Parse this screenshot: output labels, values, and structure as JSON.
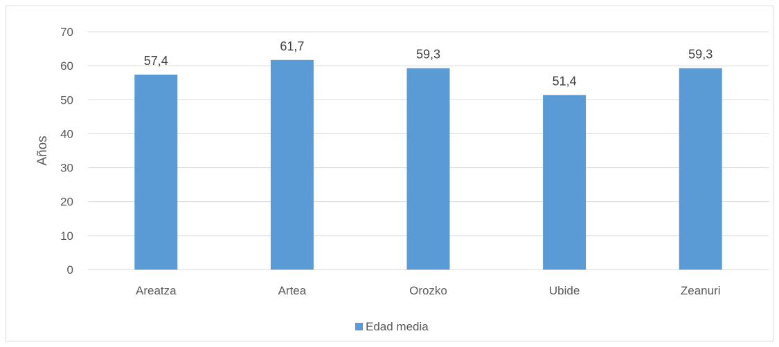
{
  "chart_data": {
    "type": "bar",
    "categories": [
      "Areatza",
      "Artea",
      "Orozko",
      "Ubide",
      "Zeanuri"
    ],
    "series": [
      {
        "name": "Edad media",
        "values": [
          57.4,
          61.7,
          59.3,
          51.4,
          59.3
        ]
      }
    ],
    "data_labels": [
      "57,4",
      "61,7",
      "59,3",
      "51,4",
      "59,3"
    ],
    "title": "",
    "xlabel": "",
    "ylabel": "Años",
    "ylim": [
      0,
      70
    ],
    "yticks": [
      0,
      10,
      20,
      30,
      40,
      50,
      60,
      70
    ],
    "grid": true,
    "legend": "bottom",
    "colors": {
      "bar": "#5b9bd5",
      "grid": "#d9d9d9",
      "text": "#595959"
    }
  }
}
